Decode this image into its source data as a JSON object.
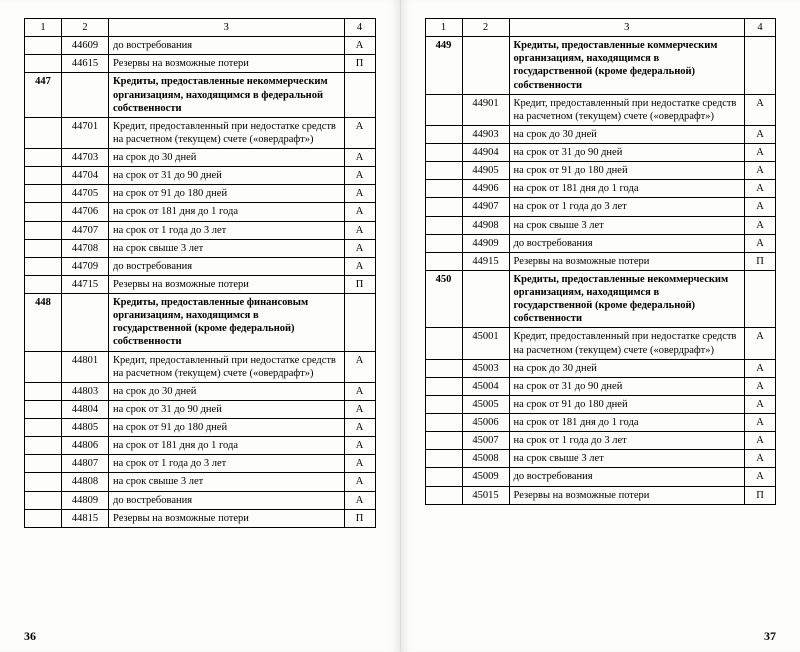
{
  "headers": [
    "1",
    "2",
    "3",
    "4"
  ],
  "leftPage": {
    "number": "36",
    "rows": [
      {
        "c1": "",
        "c2": "44609",
        "c3": "до востребования",
        "c4": "А"
      },
      {
        "c1": "",
        "c2": "44615",
        "c3": "Резервы на возможные потери",
        "c4": "П"
      },
      {
        "c1": "447",
        "c2": "",
        "c3": "Кредиты, предоставленные некоммерческим организациям, находящимся в федеральной собственности",
        "c4": "",
        "bold": true
      },
      {
        "c1": "",
        "c2": "44701",
        "c3": "Кредит, предоставленный при недостатке средств на расчетном (текущем) счете («овердрафт»)",
        "c4": "А"
      },
      {
        "c1": "",
        "c2": "44703",
        "c3": "на срок до 30 дней",
        "c4": "А"
      },
      {
        "c1": "",
        "c2": "44704",
        "c3": "на срок от 31 до 90 дней",
        "c4": "А"
      },
      {
        "c1": "",
        "c2": "44705",
        "c3": "на срок от 91 до 180 дней",
        "c4": "А"
      },
      {
        "c1": "",
        "c2": "44706",
        "c3": "на срок от 181 дня до 1 года",
        "c4": "А"
      },
      {
        "c1": "",
        "c2": "44707",
        "c3": "на срок от 1 года до 3 лет",
        "c4": "А"
      },
      {
        "c1": "",
        "c2": "44708",
        "c3": "на срок свыше 3 лет",
        "c4": "А"
      },
      {
        "c1": "",
        "c2": "44709",
        "c3": "до востребования",
        "c4": "А"
      },
      {
        "c1": "",
        "c2": "44715",
        "c3": "Резервы на возможные потери",
        "c4": "П"
      },
      {
        "c1": "448",
        "c2": "",
        "c3": "Кредиты, предоставленные финансовым организациям, находящимся в государственной (кроме федеральной) собственности",
        "c4": "",
        "bold": true
      },
      {
        "c1": "",
        "c2": "44801",
        "c3": "Кредит, предоставленный при недостатке средств на расчетном (текущем) счете («овердрафт»)",
        "c4": "А"
      },
      {
        "c1": "",
        "c2": "44803",
        "c3": "на срок до 30 дней",
        "c4": "А"
      },
      {
        "c1": "",
        "c2": "44804",
        "c3": "на срок от 31 до 90 дней",
        "c4": "А"
      },
      {
        "c1": "",
        "c2": "44805",
        "c3": "на срок от 91 до 180 дней",
        "c4": "А"
      },
      {
        "c1": "",
        "c2": "44806",
        "c3": "на срок от 181 дня до 1 года",
        "c4": "А"
      },
      {
        "c1": "",
        "c2": "44807",
        "c3": "на срок от 1 года до 3 лет",
        "c4": "А"
      },
      {
        "c1": "",
        "c2": "44808",
        "c3": "на срок свыше 3 лет",
        "c4": "А"
      },
      {
        "c1": "",
        "c2": "44809",
        "c3": "до востребования",
        "c4": "А"
      },
      {
        "c1": "",
        "c2": "44815",
        "c3": "Резервы на возможные потери",
        "c4": "П"
      }
    ]
  },
  "rightPage": {
    "number": "37",
    "rows": [
      {
        "c1": "449",
        "c2": "",
        "c3": "Кредиты, предоставленные коммерческим организациям, находящимся в государственной (кроме федеральной) собственности",
        "c4": "",
        "bold": true
      },
      {
        "c1": "",
        "c2": "44901",
        "c3": "Кредит, предоставленный при недостатке средств на расчетном (текущем) счете («овердрафт»)",
        "c4": "А"
      },
      {
        "c1": "",
        "c2": "44903",
        "c3": "на срок до 30 дней",
        "c4": "А"
      },
      {
        "c1": "",
        "c2": "44904",
        "c3": "на срок от 31 до 90 дней",
        "c4": "А"
      },
      {
        "c1": "",
        "c2": "44905",
        "c3": "на срок от 91 до 180 дней",
        "c4": "А"
      },
      {
        "c1": "",
        "c2": "44906",
        "c3": "на срок от 181 дня до 1 года",
        "c4": "А"
      },
      {
        "c1": "",
        "c2": "44907",
        "c3": "на срок от 1 года до 3 лет",
        "c4": "А"
      },
      {
        "c1": "",
        "c2": "44908",
        "c3": "на срок свыше 3 лет",
        "c4": "А"
      },
      {
        "c1": "",
        "c2": "44909",
        "c3": "до востребования",
        "c4": "А"
      },
      {
        "c1": "",
        "c2": "44915",
        "c3": "Резервы на возможные потери",
        "c4": "П"
      },
      {
        "c1": "450",
        "c2": "",
        "c3": "Кредиты, предоставленные некоммерческим организациям, находящимся в государственной (кроме федеральной) собственности",
        "c4": "",
        "bold": true
      },
      {
        "c1": "",
        "c2": "45001",
        "c3": "Кредит, предоставленный при недостатке средств на расчетном (текущем) счете («овердрафт»)",
        "c4": "А"
      },
      {
        "c1": "",
        "c2": "45003",
        "c3": "на срок до 30 дней",
        "c4": "А"
      },
      {
        "c1": "",
        "c2": "45004",
        "c3": "на срок от 31 до 90 дней",
        "c4": "А"
      },
      {
        "c1": "",
        "c2": "45005",
        "c3": "на срок от 91 до 180 дней",
        "c4": "А"
      },
      {
        "c1": "",
        "c2": "45006",
        "c3": "на срок от 181 дня до 1 года",
        "c4": "А"
      },
      {
        "c1": "",
        "c2": "45007",
        "c3": "на срок от 1 года до 3 лет",
        "c4": "А"
      },
      {
        "c1": "",
        "c2": "45008",
        "c3": "на срок свыше 3 лет",
        "c4": "А"
      },
      {
        "c1": "",
        "c2": "45009",
        "c3": "до востребования",
        "c4": "А"
      },
      {
        "c1": "",
        "c2": "45015",
        "c3": "Резервы на возможные потери",
        "c4": "П"
      }
    ]
  }
}
